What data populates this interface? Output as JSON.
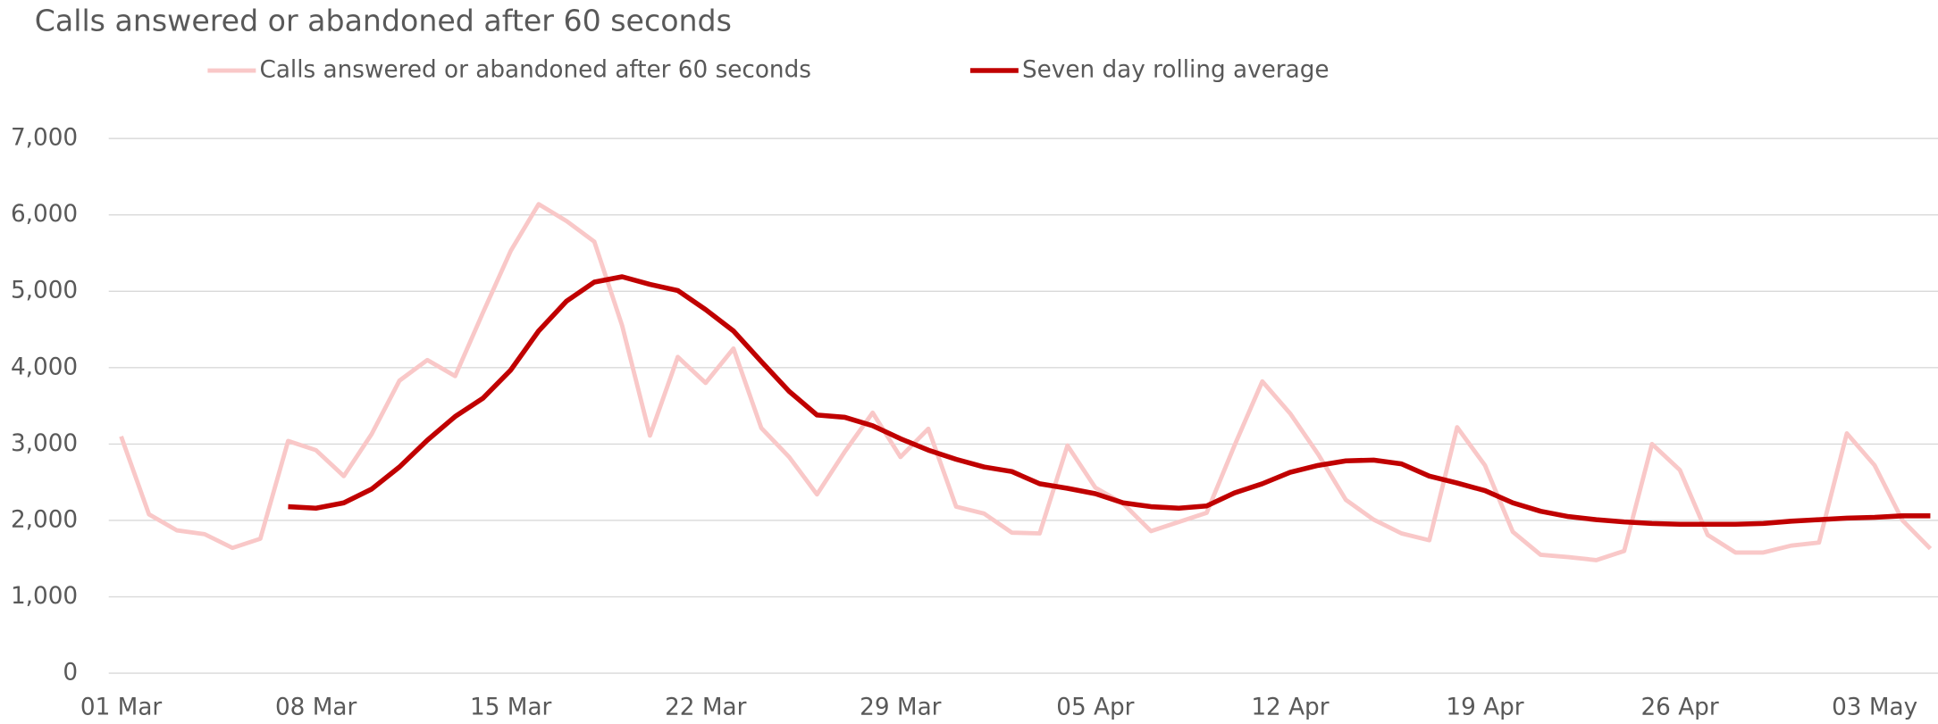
{
  "chart_data": {
    "type": "line",
    "title": "Calls answered or abandoned after 60 seconds",
    "categories": [
      "01 Mar",
      null,
      null,
      null,
      null,
      null,
      null,
      "08 Mar",
      null,
      null,
      null,
      null,
      null,
      null,
      "15 Mar",
      null,
      null,
      null,
      null,
      null,
      null,
      "22 Mar",
      null,
      null,
      null,
      null,
      null,
      null,
      "29 Mar",
      null,
      null,
      null,
      null,
      null,
      null,
      "05 Apr",
      null,
      null,
      null,
      null,
      null,
      null,
      "12 Apr",
      null,
      null,
      null,
      null,
      null,
      null,
      "19 Apr",
      null,
      null,
      null,
      null,
      null,
      null,
      "26 Apr",
      null,
      null,
      null,
      null,
      null,
      null,
      "03 May",
      null,
      null
    ],
    "series": [
      {
        "name": "Calls answered or abandoned after 60 seconds",
        "color": "#f9c8c8",
        "values": [
          3100,
          2080,
          1870,
          1820,
          1640,
          1760,
          3040,
          2920,
          2580,
          3130,
          3830,
          4100,
          3890,
          4720,
          5530,
          6140,
          5920,
          5650,
          4550,
          3110,
          4140,
          3800,
          4250,
          3210,
          2830,
          2340,
          2900,
          3410,
          2830,
          3200,
          2180,
          2090,
          1840,
          1830,
          2980,
          2430,
          2220,
          1860,
          1980,
          2100,
          2980,
          3820,
          3400,
          2870,
          2270,
          2010,
          1830,
          1740,
          3220,
          2720,
          1850,
          1550,
          1520,
          1480,
          1600,
          3000,
          2660,
          1810,
          1580,
          1580,
          1670,
          1710,
          3140,
          2720,
          2000,
          1630
        ]
      },
      {
        "name": "Seven day rolling average",
        "color": "#c00000",
        "values": [
          null,
          null,
          null,
          null,
          null,
          null,
          2180,
          2160,
          2230,
          2410,
          2700,
          3050,
          3360,
          3600,
          3970,
          4480,
          4870,
          5120,
          5190,
          5090,
          5010,
          4760,
          4480,
          4080,
          3690,
          3380,
          3350,
          3240,
          3070,
          2920,
          2800,
          2700,
          2640,
          2480,
          2420,
          2350,
          2230,
          2180,
          2160,
          2190,
          2360,
          2480,
          2630,
          2720,
          2780,
          2790,
          2740,
          2580,
          2490,
          2390,
          2230,
          2120,
          2050,
          2010,
          1980,
          1960,
          1950,
          1950,
          1950,
          1960,
          1990,
          2010,
          2030,
          2040,
          2060,
          2060
        ]
      }
    ],
    "ylim": [
      0,
      7000
    ],
    "yticks": [
      0,
      {
        "value": 1000,
        "label": "1,000"
      },
      {
        "value": 2000,
        "label": "2,000"
      },
      {
        "value": 3000,
        "label": "3,000"
      },
      {
        "value": 4000,
        "label": "4,000"
      },
      {
        "value": 5000,
        "label": "5,000"
      },
      {
        "value": 6000,
        "label": "6,000"
      },
      {
        "value": 7000,
        "label": "7,000"
      }
    ],
    "grid": true
  }
}
